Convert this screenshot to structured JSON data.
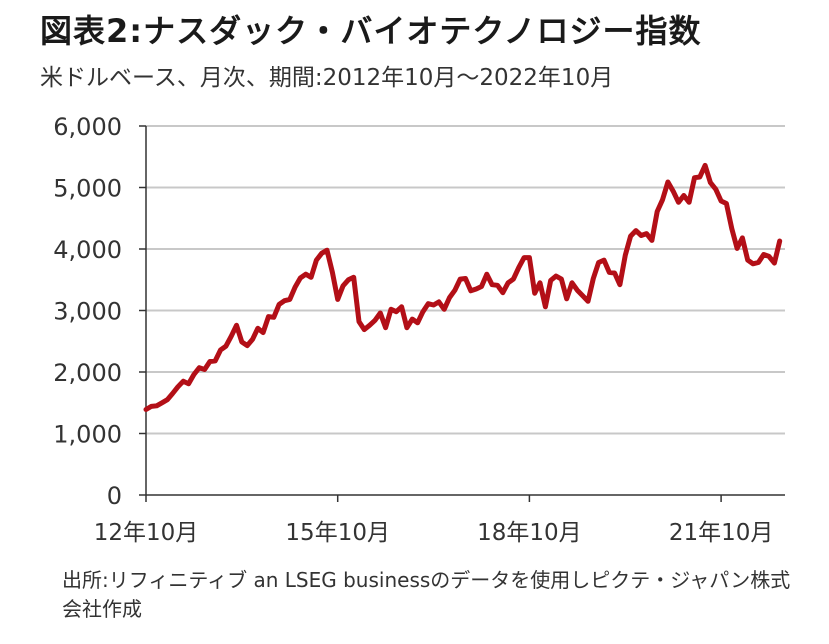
{
  "title": "図表2:ナスダック・バイオテクノロジー指数",
  "subtitle": "米ドルベース、月次、期間:2012年10月～2022年10月",
  "note": "出所:リフィニティブ an LSEG businessのデータを使用しピクテ・ジャパン株式会社作成",
  "colors": {
    "line": "#B30F17",
    "grid": "#c8c8c8",
    "axis": "#333333",
    "text": "#333333"
  },
  "chart_data": {
    "type": "line",
    "title": "図表2:ナスダック・バイオテクノロジー指数",
    "subtitle": "米ドルベース、月次、期間:2012年10月～2022年10月",
    "xlabel": "",
    "ylabel": "",
    "ylim": [
      0,
      6000
    ],
    "yticks": [
      0,
      1000,
      2000,
      3000,
      4000,
      5000,
      6000
    ],
    "ytick_labels": [
      "0",
      "1,000",
      "2,000",
      "3,000",
      "4,000",
      "5,000",
      "6,000"
    ],
    "xticks": [
      "2012-10",
      "2015-10",
      "2018-10",
      "2021-10"
    ],
    "xtick_labels": [
      "12年10月",
      "15年10月",
      "18年10月",
      "21年10月"
    ],
    "x_range": [
      "2012-10",
      "2022-10"
    ],
    "grid": "horizontal",
    "series": [
      {
        "start": "2012-10",
        "frequency": "monthly",
        "values": [
          1390,
          1440,
          1450,
          1500,
          1550,
          1650,
          1760,
          1850,
          1810,
          1960,
          2070,
          2040,
          2170,
          2180,
          2360,
          2420,
          2580,
          2760,
          2490,
          2430,
          2530,
          2710,
          2640,
          2900,
          2890,
          3100,
          3160,
          3180,
          3380,
          3530,
          3590,
          3540,
          3820,
          3930,
          3980,
          3620,
          3180,
          3400,
          3500,
          3540,
          2820,
          2690,
          2760,
          2840,
          2960,
          2720,
          3020,
          2980,
          3060,
          2720,
          2860,
          2800,
          2980,
          3110,
          3090,
          3140,
          3020,
          3210,
          3330,
          3510,
          3520,
          3320,
          3350,
          3390,
          3590,
          3420,
          3410,
          3290,
          3450,
          3510,
          3700,
          3860,
          3860,
          3280,
          3450,
          3060,
          3490,
          3560,
          3510,
          3190,
          3450,
          3330,
          3240,
          3150,
          3520,
          3780,
          3820,
          3620,
          3610,
          3420,
          3900,
          4210,
          4300,
          4220,
          4250,
          4140,
          4610,
          4800,
          5090,
          4940,
          4760,
          4870,
          4760,
          5160,
          5170,
          5360,
          5080,
          4970,
          4780,
          4740,
          4330,
          4010,
          4180,
          3820,
          3760,
          3780,
          3910,
          3880,
          3770,
          4130
        ]
      }
    ]
  }
}
